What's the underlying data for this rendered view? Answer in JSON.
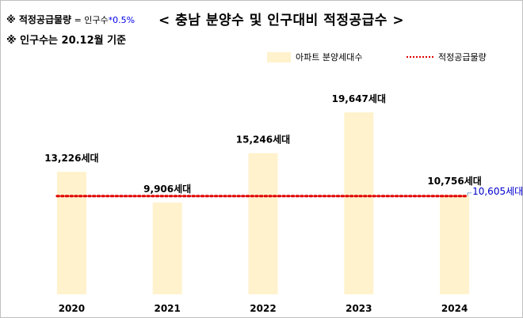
{
  "notes": {
    "note1_prefix": "※ 적정공급물량",
    "note1_formula": " = 인구수",
    "note1_accent": "*0.5%",
    "note2": "※ 인구수는 20.12월 기준"
  },
  "colors": {
    "bar": "#fff2cc",
    "line": "#e00000",
    "lineLabel": "#0000cc"
  },
  "chart_data": {
    "type": "bar",
    "title": "< 충남  분양수 및 인구대비 적정공급수 >",
    "categories": [
      "2020",
      "2021",
      "2022",
      "2023",
      "2024"
    ],
    "series": [
      {
        "name": "아파트 분양세대수",
        "values": [
          13226,
          9906,
          15246,
          19647,
          10756
        ]
      }
    ],
    "value_labels": [
      "13,226세대",
      "9,906세대",
      "15,246세대",
      "19,647세대",
      "10,756세대"
    ],
    "reference_line": {
      "name": "적정공급물량",
      "value": 10605,
      "label": "10,605세대",
      "style": "dotted"
    },
    "ylim": [
      0,
      25000
    ],
    "xlabel": "",
    "ylabel": "",
    "grid": false,
    "legend_position": "top-right"
  }
}
